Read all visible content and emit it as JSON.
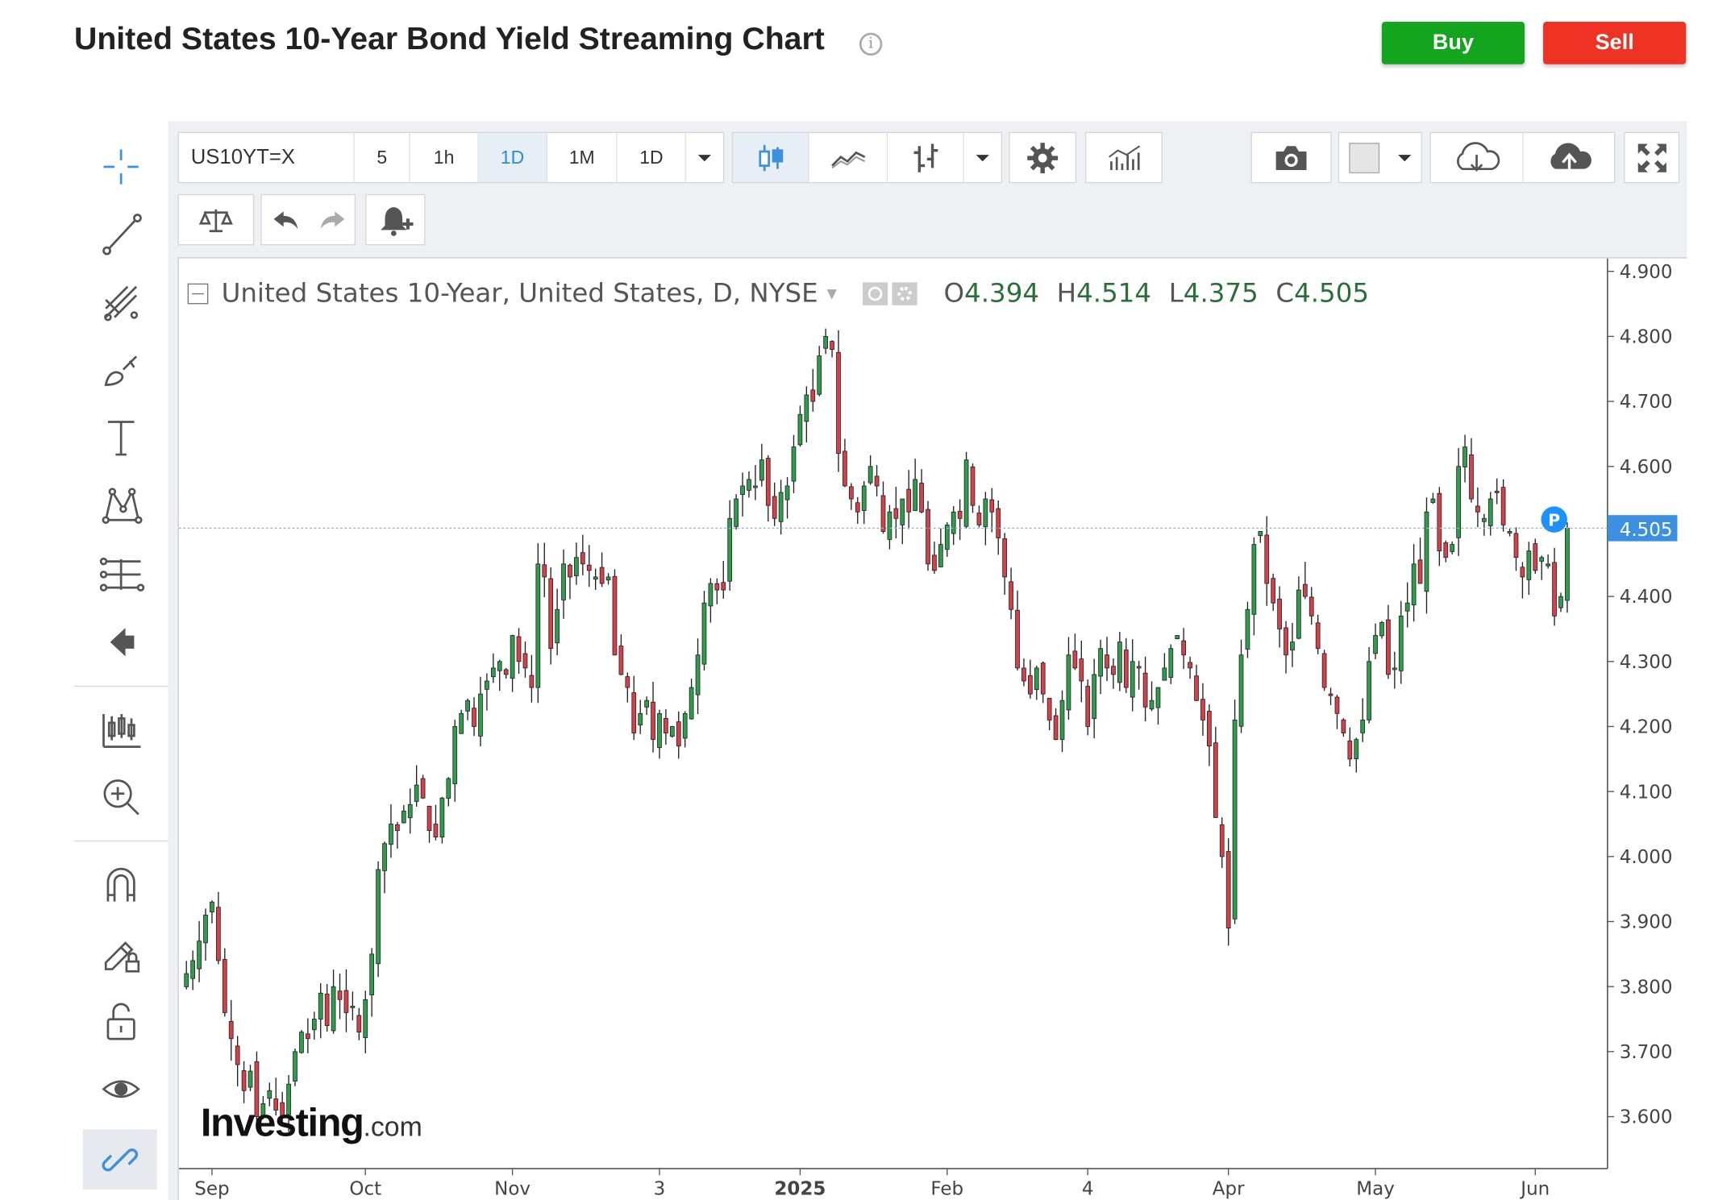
{
  "header": {
    "title": "United States 10-Year Bond Yield Streaming Chart",
    "buy_label": "Buy",
    "sell_label": "Sell"
  },
  "toolbar": {
    "symbol": "US10YT=X",
    "intervals": [
      "5",
      "1h",
      "1D",
      "1M",
      "1D"
    ],
    "active_interval_index": 2
  },
  "legend": {
    "series_title": "United States 10-Year, United States, D, NYSE",
    "open_label": "O",
    "open_value": "4.394",
    "high_label": "H",
    "high_value": "4.514",
    "low_label": "L",
    "low_value": "4.375",
    "close_label": "C",
    "close_value": "4.505"
  },
  "price_marker": {
    "label": "P",
    "value": "4.505"
  },
  "watermark": {
    "brand": "Investing",
    "suffix": ".com"
  },
  "colors": {
    "up": "#2e9e4c",
    "down": "#d6404a",
    "accent": "#3d8fe0",
    "buy": "#13a51d",
    "sell": "#ee3224"
  },
  "icons": [
    "crosshair-icon",
    "trend-line-icon",
    "fib-icon",
    "brush-icon",
    "text-icon",
    "pattern-icon",
    "measure-icon",
    "back-arrow-icon",
    "indicators-icon",
    "zoom-in-icon",
    "magnet-icon",
    "lock-drawing-icon",
    "unlock-icon",
    "eye-icon",
    "link-icon",
    "candlestick-icon",
    "line-chart-icon",
    "bar-chart-icon",
    "settings-icon",
    "studies-icon",
    "camera-icon",
    "color-swatch-icon",
    "cloud-download-icon",
    "cloud-upload-icon",
    "fullscreen-icon",
    "compare-icon",
    "undo-icon",
    "redo-icon",
    "alert-add-icon"
  ],
  "chart_data": {
    "type": "candlestick",
    "title": "United States 10-Year, United States, D, NYSE",
    "ylim": [
      3.52,
      4.92
    ],
    "y_ticks": [
      "4.900",
      "4.800",
      "4.700",
      "4.600",
      "4.400",
      "4.300",
      "4.200",
      "4.100",
      "4.000",
      "3.900",
      "3.800",
      "3.700",
      "3.600"
    ],
    "last_value": 4.505,
    "x_tick_labels": [
      {
        "label": "Sep",
        "index": 4,
        "bold": false
      },
      {
        "label": "Oct",
        "index": 28,
        "bold": false
      },
      {
        "label": "Nov",
        "index": 51,
        "bold": false
      },
      {
        "label": "3",
        "index": 74,
        "bold": false
      },
      {
        "label": "2025",
        "index": 96,
        "bold": true
      },
      {
        "label": "Feb",
        "index": 119,
        "bold": false
      },
      {
        "label": "4",
        "index": 141,
        "bold": false
      },
      {
        "label": "Apr",
        "index": 163,
        "bold": false
      },
      {
        "label": "May",
        "index": 186,
        "bold": false
      },
      {
        "label": "Jun",
        "index": 211,
        "bold": false
      }
    ],
    "close": [
      3.82,
      3.84,
      3.87,
      3.91,
      3.93,
      3.84,
      3.76,
      3.72,
      3.68,
      3.64,
      3.67,
      3.6,
      3.62,
      3.64,
      3.61,
      3.6,
      3.65,
      3.7,
      3.73,
      3.72,
      3.75,
      3.79,
      3.74,
      3.8,
      3.78,
      3.76,
      3.77,
      3.73,
      3.78,
      3.85,
      3.98,
      4.02,
      4.05,
      4.04,
      4.07,
      4.08,
      4.11,
      4.09,
      4.04,
      4.03,
      4.09,
      4.12,
      4.2,
      4.22,
      4.24,
      4.2,
      4.25,
      4.27,
      4.29,
      4.3,
      4.28,
      4.34,
      4.3,
      4.29,
      4.26,
      4.45,
      4.43,
      4.32,
      4.38,
      4.45,
      4.43,
      4.46,
      4.45,
      4.44,
      4.43,
      4.42,
      4.43,
      4.31,
      4.28,
      4.26,
      4.19,
      4.22,
      4.24,
      4.18,
      4.22,
      4.19,
      4.2,
      4.17,
      4.22,
      4.26,
      4.31,
      4.39,
      4.42,
      4.41,
      4.41,
      4.52,
      4.55,
      4.57,
      4.58,
      4.57,
      4.61,
      4.54,
      4.52,
      4.56,
      4.57,
      4.63,
      4.68,
      4.71,
      4.7,
      4.77,
      4.8,
      4.78,
      4.62,
      4.57,
      4.55,
      4.53,
      4.57,
      4.6,
      4.57,
      4.5,
      4.53,
      4.52,
      4.55,
      4.53,
      4.58,
      4.53,
      4.45,
      4.44,
      4.48,
      4.51,
      4.53,
      4.52,
      4.61,
      4.54,
      4.51,
      4.55,
      4.53,
      4.49,
      4.43,
      4.38,
      4.29,
      4.27,
      4.25,
      4.29,
      4.25,
      4.21,
      4.18,
      4.24,
      4.31,
      4.29,
      4.27,
      4.2,
      4.28,
      4.32,
      4.29,
      4.28,
      4.33,
      4.26,
      4.3,
      4.29,
      4.23,
      4.24,
      4.26,
      4.29,
      4.32,
      4.34,
      4.31,
      4.29,
      4.24,
      4.21,
      4.17,
      4.06,
      4.0,
      3.89,
      4.21,
      4.31,
      4.38,
      4.48,
      4.5,
      4.42,
      4.39,
      4.35,
      4.31,
      4.33,
      4.41,
      4.4,
      4.37,
      4.32,
      4.26,
      4.25,
      4.22,
      4.19,
      4.15,
      4.18,
      4.21,
      4.3,
      4.34,
      4.36,
      4.28,
      4.29,
      4.37,
      4.39,
      4.45,
      4.42,
      4.53,
      4.55,
      4.47,
      4.46,
      4.48,
      4.6,
      4.63,
      4.55,
      4.53,
      4.52,
      4.55,
      4.56,
      4.51,
      4.5,
      4.46,
      4.43,
      4.47,
      4.44,
      4.46,
      4.45,
      4.37,
      4.4,
      4.505
    ],
    "candles": "open/high/low derived per bar from close series (open = previous close + small gap)"
  }
}
